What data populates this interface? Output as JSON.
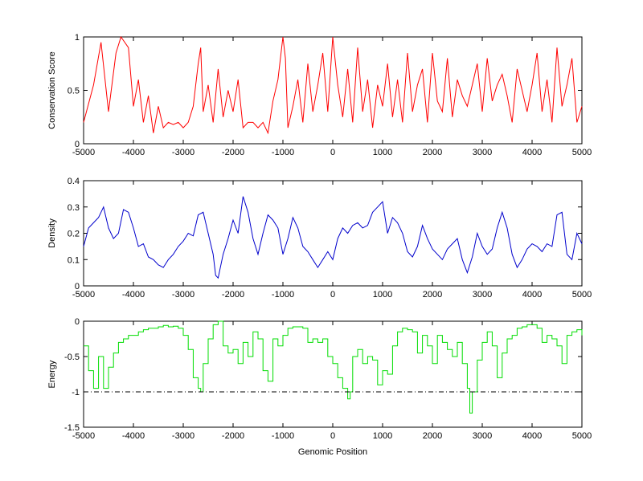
{
  "chart_data": [
    {
      "type": "line",
      "ylabel": "Conservation Score",
      "xlim": [
        -5000,
        5000
      ],
      "ylim": [
        0,
        1
      ],
      "xticks": [
        "-5000",
        "-4000",
        "-3000",
        "-2000",
        "-1000",
        "0",
        "1000",
        "2000",
        "3000",
        "4000",
        "5000"
      ],
      "yticks": [
        "0",
        "0.5",
        "1"
      ],
      "color": "#ff0000",
      "x": [
        -5000,
        -4800,
        -4650,
        -4500,
        -4350,
        -4250,
        -4100,
        -4000,
        -3900,
        -3800,
        -3700,
        -3600,
        -3500,
        -3400,
        -3300,
        -3200,
        -3100,
        -3000,
        -2900,
        -2800,
        -2700,
        -2650,
        -2600,
        -2500,
        -2400,
        -2300,
        -2200,
        -2100,
        -2000,
        -1900,
        -1800,
        -1700,
        -1600,
        -1500,
        -1400,
        -1300,
        -1200,
        -1100,
        -1000,
        -950,
        -900,
        -800,
        -700,
        -600,
        -500,
        -400,
        -300,
        -200,
        -100,
        0,
        100,
        200,
        300,
        400,
        500,
        600,
        700,
        800,
        900,
        1000,
        1100,
        1200,
        1300,
        1400,
        1500,
        1600,
        1700,
        1800,
        1900,
        2000,
        2100,
        2200,
        2300,
        2400,
        2500,
        2600,
        2700,
        2800,
        2900,
        3000,
        3100,
        3200,
        3300,
        3400,
        3500,
        3600,
        3700,
        3800,
        3900,
        4000,
        4100,
        4200,
        4300,
        4400,
        4500,
        4600,
        4700,
        4800,
        4900,
        5000
      ],
      "y": [
        0.2,
        0.55,
        0.95,
        0.3,
        0.85,
        1.0,
        0.9,
        0.35,
        0.6,
        0.2,
        0.45,
        0.1,
        0.35,
        0.15,
        0.2,
        0.18,
        0.2,
        0.15,
        0.2,
        0.35,
        0.75,
        0.9,
        0.3,
        0.55,
        0.2,
        0.7,
        0.25,
        0.5,
        0.3,
        0.6,
        0.15,
        0.2,
        0.2,
        0.15,
        0.2,
        0.1,
        0.4,
        0.6,
        1.0,
        0.8,
        0.15,
        0.35,
        0.6,
        0.2,
        0.75,
        0.3,
        0.55,
        0.85,
        0.3,
        1.0,
        0.55,
        0.25,
        0.7,
        0.2,
        0.9,
        0.3,
        0.6,
        0.15,
        0.55,
        0.35,
        0.75,
        0.25,
        0.6,
        0.2,
        0.85,
        0.3,
        0.55,
        0.7,
        0.2,
        0.85,
        0.4,
        0.3,
        0.8,
        0.25,
        0.6,
        0.45,
        0.35,
        0.55,
        0.75,
        0.3,
        0.8,
        0.4,
        0.55,
        0.65,
        0.45,
        0.2,
        0.7,
        0.5,
        0.3,
        0.55,
        0.85,
        0.3,
        0.6,
        0.2,
        0.9,
        0.35,
        0.55,
        0.8,
        0.2,
        0.35
      ]
    },
    {
      "type": "line",
      "ylabel": "Density",
      "xlim": [
        -5000,
        5000
      ],
      "ylim": [
        0,
        0.4
      ],
      "xticks": [
        "-5000",
        "-4000",
        "-3000",
        "-2000",
        "-1000",
        "0",
        "1000",
        "2000",
        "3000",
        "4000",
        "5000"
      ],
      "yticks": [
        "0",
        "0.1",
        "0.2",
        "0.3",
        "0.4"
      ],
      "color": "#0000cc",
      "x": [
        -5000,
        -4900,
        -4800,
        -4700,
        -4600,
        -4500,
        -4400,
        -4300,
        -4200,
        -4100,
        -4000,
        -3900,
        -3800,
        -3700,
        -3600,
        -3500,
        -3400,
        -3300,
        -3200,
        -3100,
        -3000,
        -2900,
        -2800,
        -2700,
        -2600,
        -2500,
        -2400,
        -2350,
        -2300,
        -2200,
        -2100,
        -2000,
        -1900,
        -1800,
        -1700,
        -1600,
        -1500,
        -1400,
        -1300,
        -1200,
        -1100,
        -1000,
        -900,
        -800,
        -700,
        -600,
        -500,
        -400,
        -300,
        -200,
        -100,
        0,
        100,
        200,
        300,
        400,
        500,
        600,
        700,
        800,
        900,
        1000,
        1100,
        1200,
        1300,
        1400,
        1500,
        1600,
        1700,
        1800,
        1900,
        2000,
        2100,
        2200,
        2300,
        2400,
        2500,
        2600,
        2700,
        2800,
        2900,
        3000,
        3100,
        3200,
        3300,
        3400,
        3500,
        3600,
        3700,
        3800,
        3900,
        4000,
        4100,
        4200,
        4300,
        4400,
        4500,
        4600,
        4700,
        4800,
        4900,
        5000
      ],
      "y": [
        0.15,
        0.22,
        0.24,
        0.26,
        0.3,
        0.22,
        0.18,
        0.2,
        0.29,
        0.28,
        0.22,
        0.15,
        0.16,
        0.11,
        0.1,
        0.08,
        0.07,
        0.1,
        0.12,
        0.15,
        0.17,
        0.2,
        0.19,
        0.27,
        0.28,
        0.2,
        0.12,
        0.04,
        0.03,
        0.12,
        0.18,
        0.25,
        0.2,
        0.34,
        0.28,
        0.18,
        0.12,
        0.2,
        0.27,
        0.25,
        0.22,
        0.12,
        0.18,
        0.26,
        0.22,
        0.15,
        0.13,
        0.1,
        0.07,
        0.1,
        0.13,
        0.1,
        0.18,
        0.22,
        0.2,
        0.23,
        0.24,
        0.22,
        0.23,
        0.28,
        0.3,
        0.32,
        0.2,
        0.26,
        0.24,
        0.2,
        0.13,
        0.11,
        0.15,
        0.23,
        0.18,
        0.14,
        0.12,
        0.1,
        0.14,
        0.16,
        0.18,
        0.1,
        0.05,
        0.11,
        0.2,
        0.15,
        0.12,
        0.14,
        0.22,
        0.28,
        0.22,
        0.12,
        0.07,
        0.1,
        0.14,
        0.16,
        0.15,
        0.13,
        0.16,
        0.15,
        0.27,
        0.28,
        0.12,
        0.1,
        0.2,
        0.16
      ]
    },
    {
      "type": "line",
      "ylabel": "Energy",
      "xlabel": "Genomic Position",
      "xlim": [
        -5000,
        5000
      ],
      "ylim": [
        -1.5,
        0
      ],
      "xticks": [
        "-5000",
        "-4000",
        "-3000",
        "-2000",
        "-1000",
        "0",
        "1000",
        "2000",
        "3000",
        "4000",
        "5000"
      ],
      "yticks": [
        "-1.5",
        "-1",
        "-0.5",
        "0"
      ],
      "color": "#00dd00",
      "threshold": -1.0,
      "threshold_color": "#000000",
      "x": [
        -5000,
        -4900,
        -4800,
        -4700,
        -4600,
        -4500,
        -4400,
        -4300,
        -4200,
        -4100,
        -4000,
        -3900,
        -3800,
        -3700,
        -3600,
        -3500,
        -3400,
        -3300,
        -3200,
        -3100,
        -3000,
        -2900,
        -2800,
        -2700,
        -2650,
        -2600,
        -2500,
        -2400,
        -2300,
        -2200,
        -2100,
        -2000,
        -1900,
        -1800,
        -1700,
        -1600,
        -1500,
        -1400,
        -1300,
        -1200,
        -1100,
        -1000,
        -900,
        -800,
        -700,
        -600,
        -500,
        -400,
        -300,
        -200,
        -100,
        0,
        100,
        200,
        300,
        350,
        400,
        500,
        600,
        700,
        800,
        900,
        1000,
        1100,
        1200,
        1300,
        1400,
        1500,
        1600,
        1700,
        1800,
        1900,
        2000,
        2100,
        2200,
        2300,
        2400,
        2500,
        2600,
        2700,
        2750,
        2800,
        2900,
        3000,
        3100,
        3200,
        3300,
        3400,
        3500,
        3600,
        3700,
        3800,
        3900,
        4000,
        4100,
        4200,
        4300,
        4400,
        4500,
        4600,
        4700,
        4800,
        4900,
        5000
      ],
      "y": [
        -0.35,
        -0.7,
        -0.95,
        -0.5,
        -0.95,
        -0.65,
        -0.45,
        -0.3,
        -0.25,
        -0.2,
        -0.2,
        -0.15,
        -0.12,
        -0.1,
        -0.1,
        -0.08,
        -0.06,
        -0.08,
        -0.07,
        -0.1,
        -0.2,
        -0.4,
        -0.8,
        -0.95,
        -1.0,
        -0.6,
        -0.25,
        -0.05,
        0.0,
        -0.35,
        -0.45,
        -0.4,
        -0.6,
        -0.3,
        -0.5,
        -0.15,
        -0.25,
        -0.7,
        -0.85,
        -0.25,
        -0.35,
        -0.2,
        -0.1,
        -0.08,
        -0.08,
        -0.1,
        -0.3,
        -0.25,
        -0.3,
        -0.25,
        -0.5,
        -0.6,
        -0.8,
        -0.95,
        -1.1,
        -1.0,
        -0.5,
        -0.4,
        -0.6,
        -0.5,
        -0.55,
        -0.9,
        -0.7,
        -0.75,
        -0.35,
        -0.15,
        -0.1,
        -0.12,
        -0.15,
        -0.45,
        -0.2,
        -0.35,
        -0.6,
        -0.2,
        -0.3,
        -0.4,
        -0.5,
        -0.3,
        -0.6,
        -0.95,
        -1.3,
        -1.0,
        -0.55,
        -0.3,
        -0.15,
        -0.35,
        -0.8,
        -0.45,
        -0.25,
        -0.2,
        -0.1,
        -0.08,
        -0.05,
        -0.05,
        -0.1,
        -0.3,
        -0.2,
        -0.25,
        -0.35,
        -0.6,
        -0.2,
        -0.15,
        -0.12,
        -0.2
      ]
    }
  ]
}
